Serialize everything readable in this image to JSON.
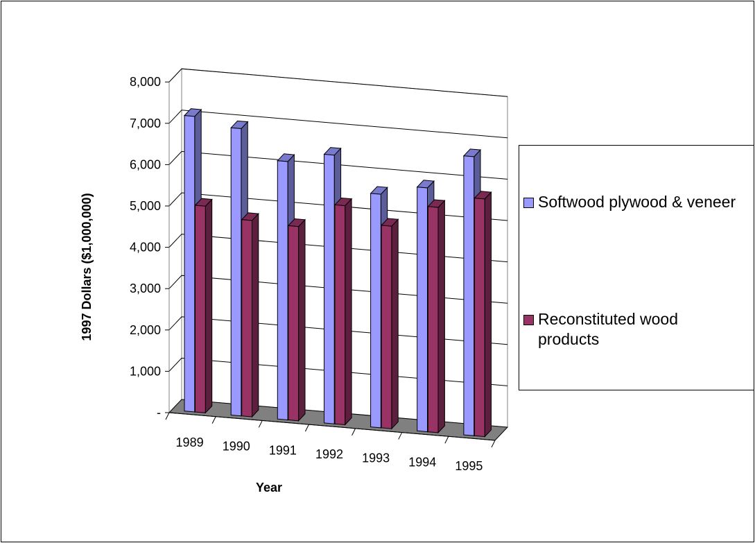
{
  "chart_data": {
    "type": "bar",
    "style": "3d-clustered-column",
    "title": "",
    "xlabel": "Year",
    "ylabel": "1997 Dollars ($1,000,000)",
    "categories": [
      "1989",
      "1990",
      "1991",
      "1992",
      "1993",
      "1994",
      "1995"
    ],
    "ylim": [
      0,
      8000
    ],
    "yticks": [
      "-",
      "1,000",
      "2,000",
      "3,000",
      "4,000",
      "5,000",
      "6,000",
      "7,000",
      "8,000"
    ],
    "grid": true,
    "legend_position": "right",
    "series": [
      {
        "name": "Softwood plywood & veneer",
        "color": "#9999ff",
        "values": [
          7150,
          6950,
          6250,
          6500,
          5650,
          5900,
          6750
        ]
      },
      {
        "name": "Reconstituted wood products",
        "color": "#993366",
        "values": [
          5000,
          4750,
          4700,
          5300,
          4900,
          5450,
          5750
        ]
      }
    ]
  }
}
